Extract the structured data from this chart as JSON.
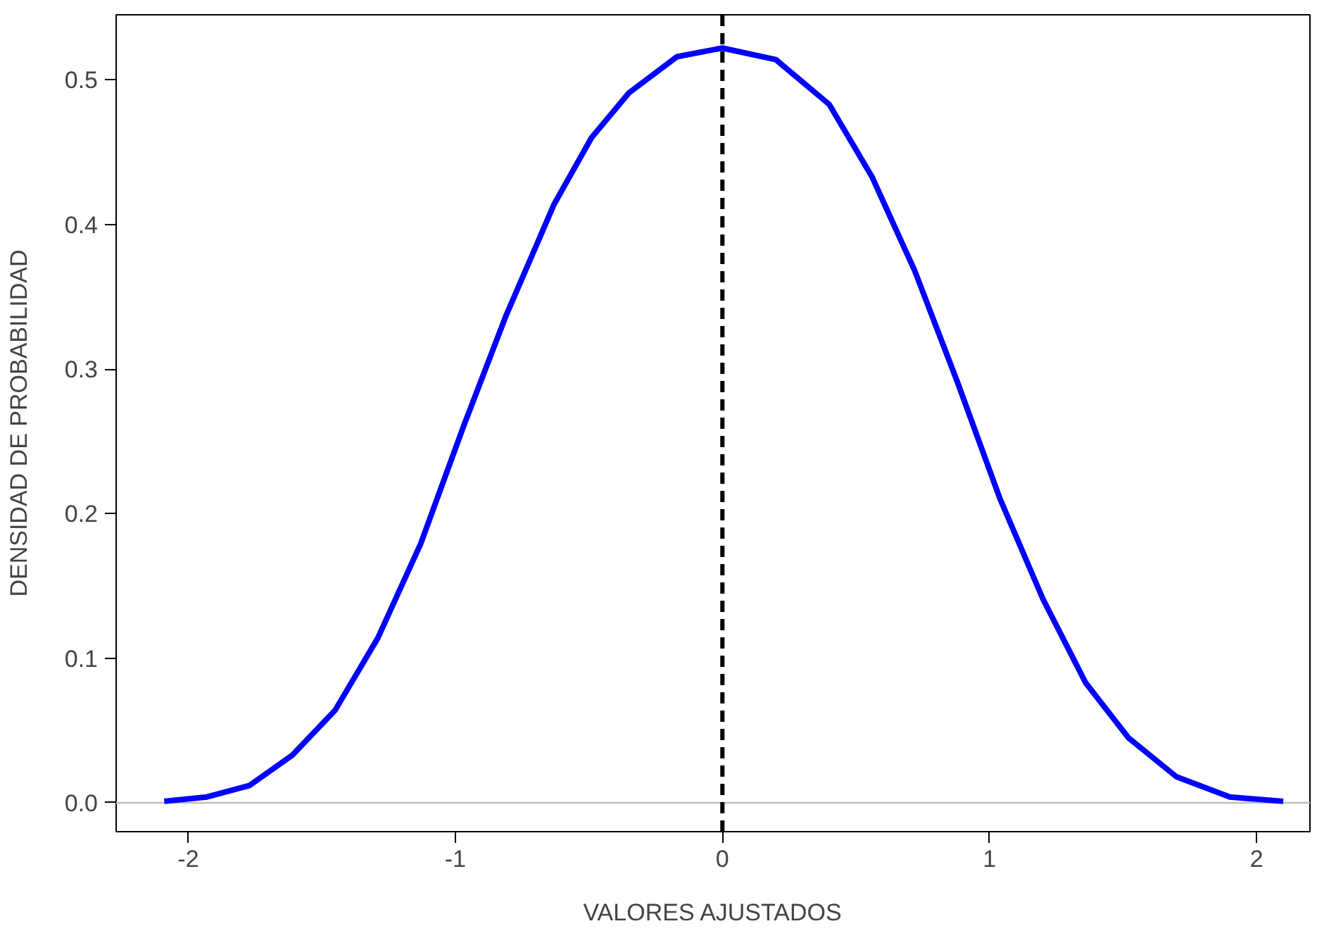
{
  "chart_data": {
    "type": "line",
    "xlabel": "VALORES AJUSTADOS",
    "ylabel": "DENSIDAD DE PROBABILIDAD",
    "xlim": [
      -2.27,
      2.2
    ],
    "ylim": [
      -0.02,
      0.545
    ],
    "xticks": [
      -2,
      -1,
      0,
      1,
      2
    ],
    "yticks": [
      {
        "value": 0,
        "label": "0.0"
      },
      0.1,
      0.2,
      0.3,
      0.4,
      0.5
    ],
    "grid": false,
    "marker": "none",
    "line_style": "solid",
    "series": [
      {
        "color": "#0000ff",
        "x": [
          -2.09,
          -1.93,
          -1.77,
          -1.61,
          -1.45,
          -1.29,
          -1.13,
          -0.97,
          -0.81,
          -0.63,
          -0.49,
          -0.35,
          -0.17,
          0,
          0.2,
          0.4,
          0.56,
          0.72,
          0.88,
          1.04,
          1.2,
          1.36,
          1.52,
          1.7,
          1.9,
          2.1
        ],
        "values": [
          0.001,
          0.004,
          0.012,
          0.033,
          0.064,
          0.114,
          0.179,
          0.26,
          0.337,
          0.414,
          0.46,
          0.491,
          0.516,
          0.522,
          0.514,
          0.483,
          0.433,
          0.368,
          0.291,
          0.21,
          0.141,
          0.083,
          0.045,
          0.018,
          0.004,
          0.001
        ]
      }
    ],
    "ref_lines": [
      {
        "axis": "y",
        "value": 0,
        "color": "#bebebe",
        "line_style": "solid"
      },
      {
        "axis": "x",
        "value": 0,
        "color": "#000000",
        "line_style": "dashed"
      }
    ]
  }
}
